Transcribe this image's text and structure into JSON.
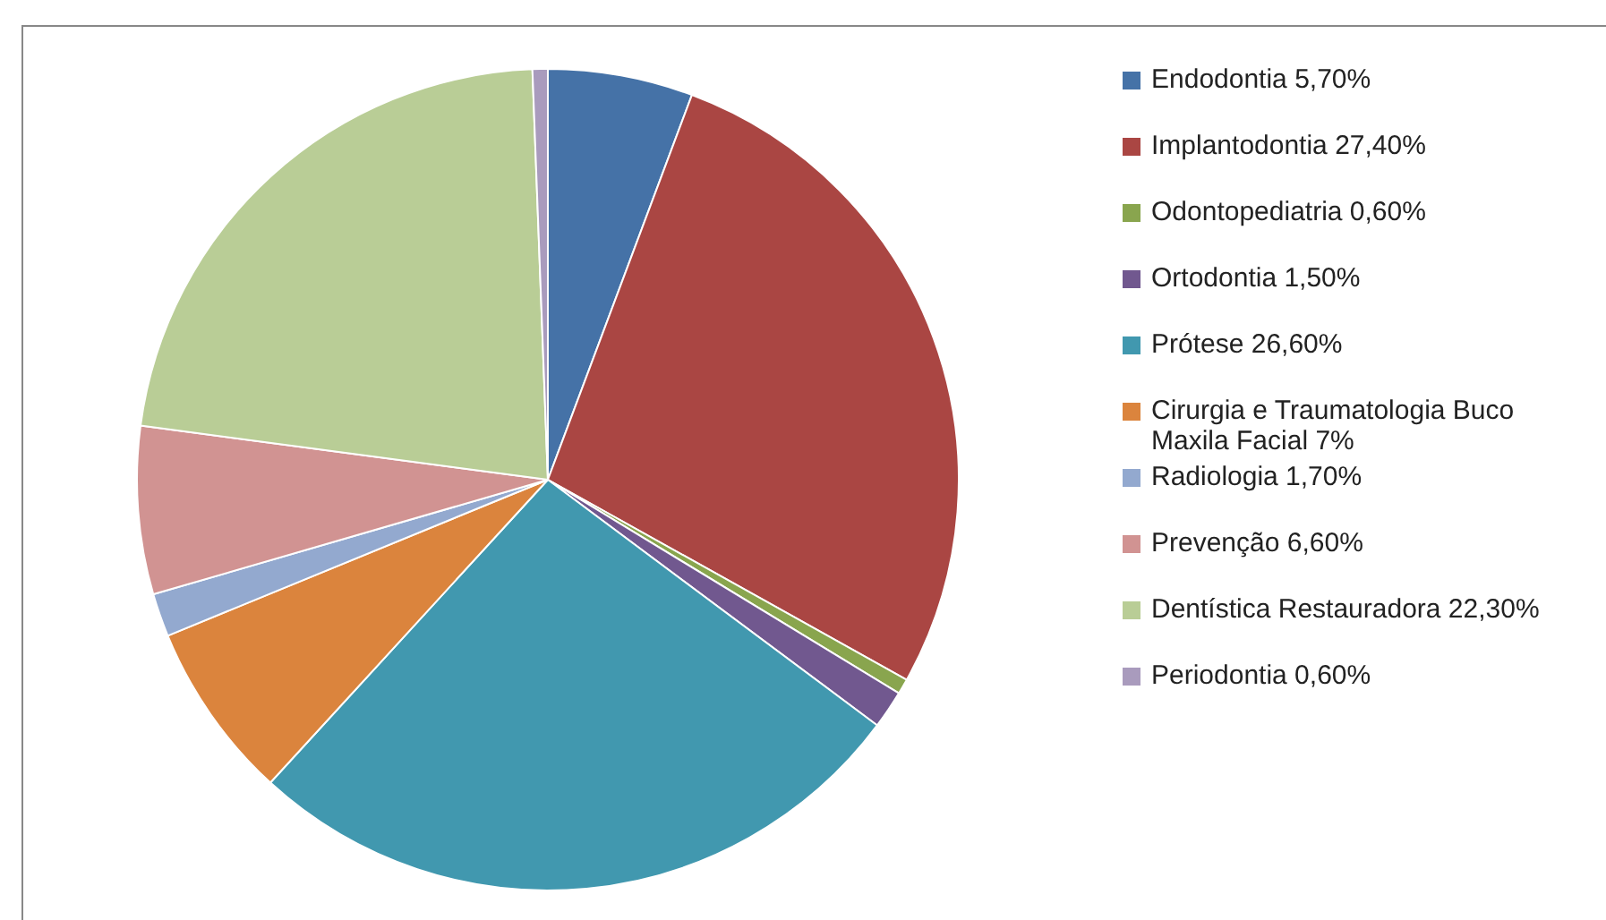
{
  "chart_data": {
    "type": "pie",
    "legend": "right",
    "categories": [
      "Endodontia 5,70%",
      "Implantodontia 27,40%",
      "Odontopediatria 0,60%",
      "Ortodontia 1,50%",
      "Prótese 26,60%",
      "Cirurgia e Traumatologia Buco Maxila Facial 7%",
      "Radiologia 1,70%",
      "Prevenção 6,60%",
      "Dentística Restauradora 22,30%",
      "Periodontia 0,60%"
    ],
    "values": [
      5.7,
      27.4,
      0.6,
      1.5,
      26.6,
      7,
      1.7,
      6.6,
      22.3,
      0.6
    ],
    "colors": [
      "#4572a7",
      "#aa4643",
      "#89a54e",
      "#71588f",
      "#4198af",
      "#db843d",
      "#93a9cf",
      "#d19392",
      "#b9cd96",
      "#a99bbd"
    ]
  }
}
